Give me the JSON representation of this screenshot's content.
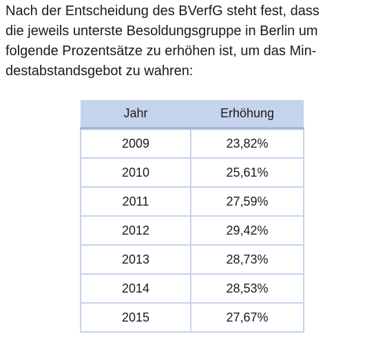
{
  "intro": {
    "lines": [
      "Nach der Entscheidung des BVerfG steht fest, dass",
      "die jeweils unterste Besoldungsgruppe in Berlin um",
      "folgende Prozentsätze zu erhöhen ist, um das Min-",
      "destabstandsgebot zu wahren:"
    ]
  },
  "table": {
    "headers": [
      "Jahr",
      "Erhöhung"
    ],
    "rows": [
      [
        "2009",
        "23,82%"
      ],
      [
        "2010",
        "25,61%"
      ],
      [
        "2011",
        "27,59%"
      ],
      [
        "2012",
        "29,42%"
      ],
      [
        "2013",
        "28,73%"
      ],
      [
        "2014",
        "28,53%"
      ],
      [
        "2015",
        "27,67%"
      ]
    ]
  },
  "colors": {
    "header_bg": "#c5d3ec",
    "header_rule": "#a6b8de",
    "grid": "#c5d3ec"
  }
}
